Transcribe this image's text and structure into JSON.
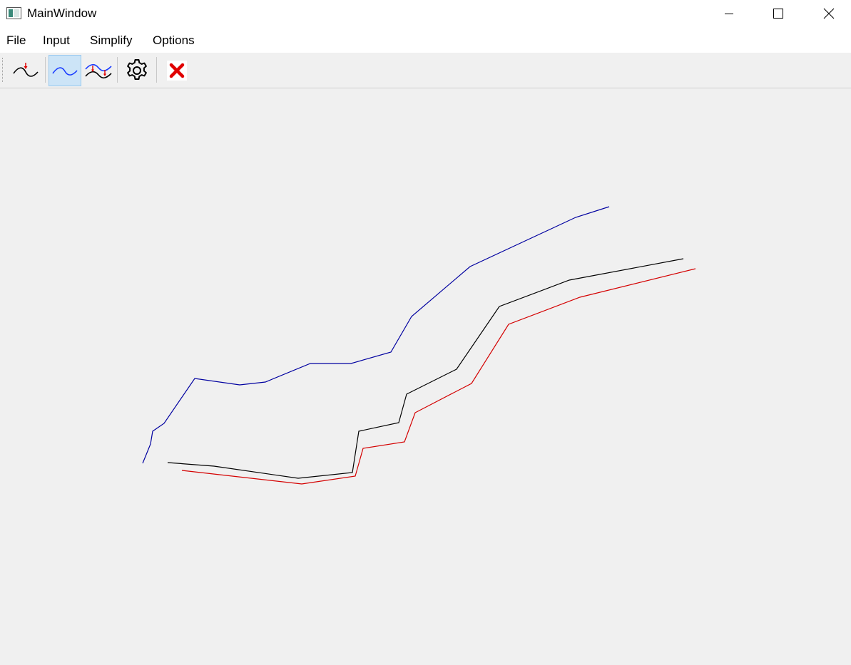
{
  "window": {
    "title": "MainWindow",
    "controls": [
      "minimize-icon",
      "maximize-icon",
      "close-icon"
    ]
  },
  "menu": {
    "items": [
      "File",
      "Input",
      "Simplify",
      "Options"
    ]
  },
  "toolbar": {
    "buttons": [
      {
        "icon": "input-curve-icon",
        "active": false
      },
      {
        "icon": "simplify-curve-icon",
        "active": true
      },
      {
        "icon": "compare-curves-icon",
        "active": false
      },
      {
        "icon": "settings-gear-icon",
        "active": false
      },
      {
        "icon": "clear-red-x-icon",
        "active": false
      }
    ]
  },
  "colors": {
    "blue_line": "#0000a0",
    "black_line": "#000000",
    "red_line": "#d40000",
    "active_button": "#cce4f7",
    "clear_icon": "#e00000"
  }
}
